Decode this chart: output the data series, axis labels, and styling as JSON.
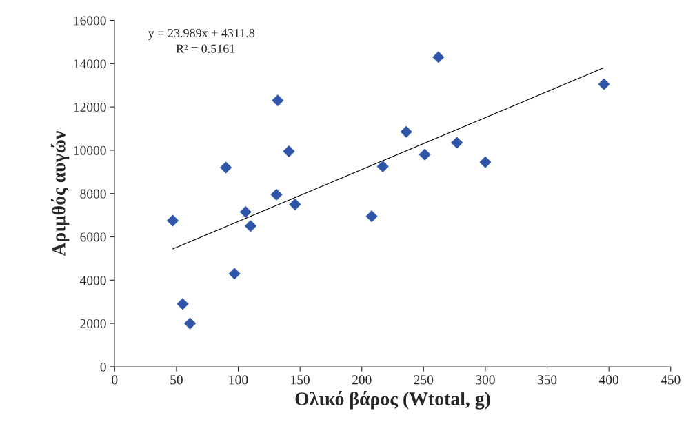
{
  "chart_data": {
    "type": "scatter",
    "xlabel": "Ολικό βάρος (Wtotal, g)",
    "ylabel": "Αριμθός αυγών",
    "annotations": [
      "y = 23.989x + 4311.8",
      "R² = 0.5161"
    ],
    "series": [
      {
        "color": "#2f55a8",
        "marker": "diamond",
        "x": [
          47,
          55,
          61,
          90,
          97,
          106,
          110,
          131,
          132,
          141,
          146,
          208,
          217,
          236,
          251,
          262,
          277,
          300,
          396
        ],
        "values": [
          6750,
          2900,
          2000,
          9200,
          4300,
          7150,
          6500,
          7950,
          12300,
          9950,
          7500,
          6950,
          9250,
          10850,
          9800,
          14300,
          10350,
          9450,
          13050
        ]
      },
      {
        "type": "line",
        "color": "#000000",
        "marker": "none",
        "x": [
          47,
          396
        ],
        "values": [
          5440,
          13810
        ]
      }
    ],
    "xlim": [
      0,
      450
    ],
    "xticks": [
      0,
      50,
      100,
      150,
      200,
      250,
      300,
      350,
      400,
      450
    ],
    "ylim": [
      0,
      16000
    ],
    "yticks": [
      0,
      2000,
      4000,
      6000,
      8000,
      10000,
      12000,
      14000,
      16000
    ],
    "grid": false,
    "legend": false
  }
}
